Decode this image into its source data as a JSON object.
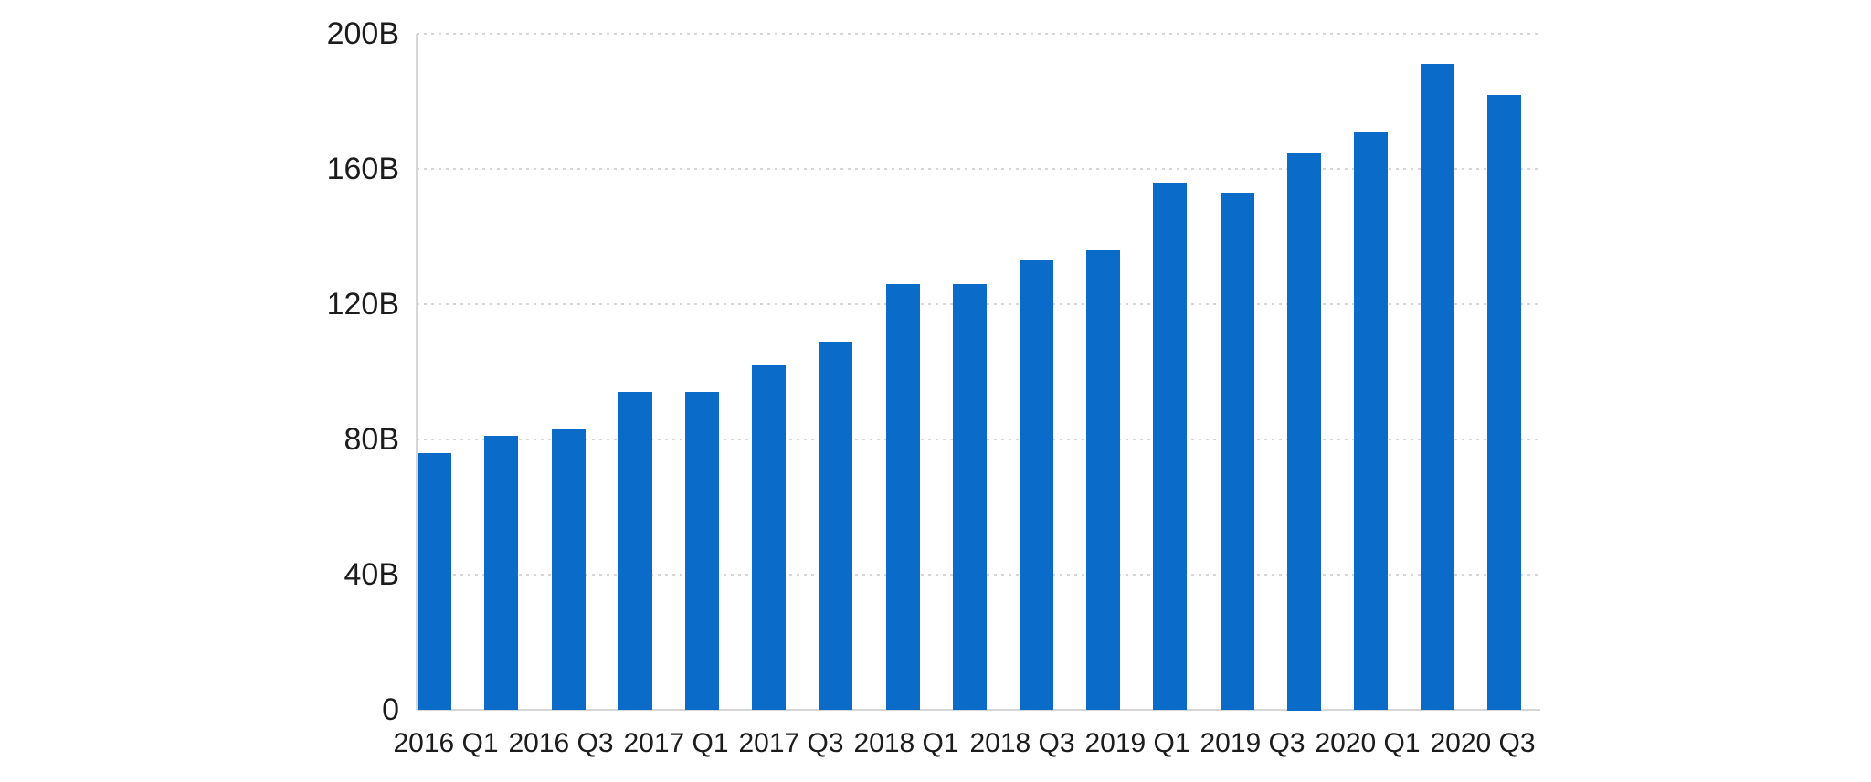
{
  "chart_data": {
    "type": "bar",
    "unit": "B",
    "values": [
      76,
      81,
      83,
      94,
      94,
      102,
      109,
      126,
      126,
      133,
      136,
      156,
      153,
      165,
      171,
      191,
      182
    ],
    "x_tick_labels": [
      "2016 Q1",
      "2016 Q3",
      "2017 Q1",
      "2017 Q3",
      "2018 Q1",
      "2018 Q3",
      "2019 Q1",
      "2019 Q3",
      "2020 Q1",
      "2020 Q3"
    ],
    "y_ticks": [
      200,
      160,
      120,
      80,
      40,
      0
    ],
    "y_tick_labels": [
      "200B",
      "160B",
      "120B",
      "80B",
      "40B",
      "0"
    ],
    "ylim": [
      0,
      200
    ],
    "grid": "horizontal-dotted",
    "legend": "none",
    "title": "",
    "bar_color": "#0a6bc8",
    "grid_color": "#d6d6d6",
    "text_color": "#1c1c1e",
    "background_color": "#ffffff"
  }
}
